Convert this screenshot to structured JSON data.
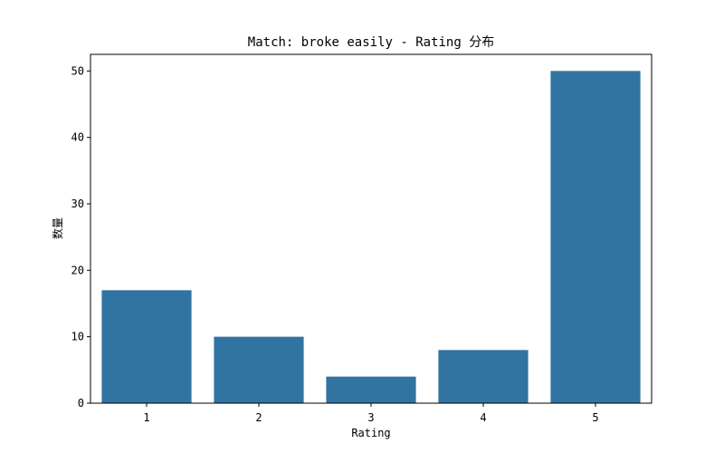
{
  "chart_data": {
    "type": "bar",
    "title": "Match: broke easily - Rating 分布",
    "xlabel": "Rating",
    "ylabel": "数量",
    "categories": [
      "1",
      "2",
      "3",
      "4",
      "5"
    ],
    "values": [
      17,
      10,
      4,
      8,
      50
    ],
    "ylim": [
      0,
      52.5
    ],
    "yticks": [
      "0",
      "10",
      "20",
      "30",
      "40",
      "50"
    ],
    "bar_color": "#3274a1",
    "grid": false,
    "legend": "none"
  }
}
